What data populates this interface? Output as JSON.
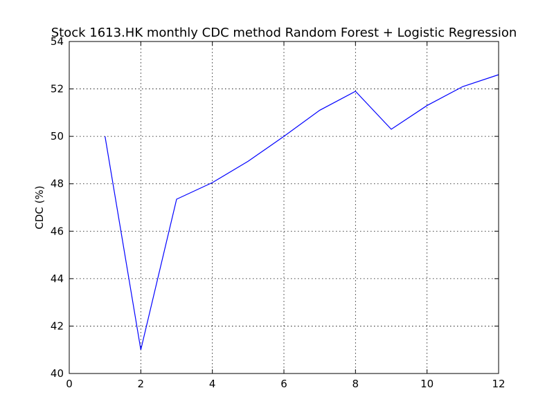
{
  "chart_data": {
    "type": "line",
    "title": "Stock 1613.HK monthly CDC method Random Forest + Logistic Regression",
    "xlabel": "",
    "ylabel": "CDC (%)",
    "xlim": [
      0,
      12
    ],
    "ylim": [
      40,
      54
    ],
    "xticks": [
      0,
      2,
      4,
      6,
      8,
      10,
      12
    ],
    "yticks": [
      40,
      42,
      44,
      46,
      48,
      50,
      52,
      54
    ],
    "grid": true,
    "series": [
      {
        "color": "#0000ff",
        "x": [
          1,
          2,
          3,
          4,
          5,
          6,
          7,
          8,
          9,
          10,
          11,
          12
        ],
        "y": [
          50.0,
          41.0,
          47.35,
          48.05,
          48.95,
          50.0,
          51.1,
          51.9,
          50.3,
          51.3,
          52.1,
          52.6
        ]
      }
    ]
  }
}
